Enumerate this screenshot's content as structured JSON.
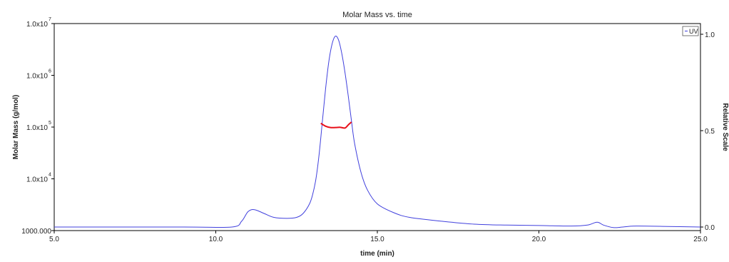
{
  "chart_data": {
    "type": "line",
    "title": "Molar Mass vs. time",
    "xlabel": "time (min)",
    "ylabel": "Molar Mass (g/mol)",
    "y2label": "Relative Scale",
    "xlim": [
      5.0,
      25.0
    ],
    "ylim": [
      1000,
      10000000
    ],
    "yscale": "log",
    "y2lim": [
      0.0,
      1.0
    ],
    "grid": false,
    "x_ticks": [
      "5.0",
      "10.0",
      "15.0",
      "20.0",
      "25.0"
    ],
    "x_tick_values": [
      5,
      10,
      15,
      20,
      25
    ],
    "y_ticks": [
      {
        "value": 1000,
        "label": "1000.000",
        "exp": ""
      },
      {
        "value": 10000,
        "label": "1.0x10",
        "exp": "4"
      },
      {
        "value": 100000,
        "label": "1.0x10",
        "exp": "5"
      },
      {
        "value": 1000000,
        "label": "1.0x10",
        "exp": "6"
      },
      {
        "value": 10000000,
        "label": "1.0x10",
        "exp": "7"
      }
    ],
    "y2_ticks": [
      {
        "value": 0.0,
        "label": "0.0"
      },
      {
        "value": 0.5,
        "label": "0.5"
      },
      {
        "value": 1.0,
        "label": "1.0"
      }
    ],
    "legend": {
      "placement": "top-right",
      "entries": [
        "UV"
      ]
    },
    "series": [
      {
        "name": "UV",
        "axis": "right",
        "color": "#4040dd",
        "x": [
          5.0,
          9.0,
          10.5,
          10.8,
          11.0,
          11.2,
          11.5,
          11.8,
          12.2,
          12.5,
          12.7,
          12.9,
          13.0,
          13.1,
          13.2,
          13.3,
          13.4,
          13.5,
          13.6,
          13.7,
          13.8,
          13.9,
          14.0,
          14.1,
          14.2,
          14.3,
          14.5,
          14.7,
          15.0,
          15.5,
          16.0,
          17.0,
          18.0,
          19.0,
          20.0,
          21.0,
          21.5,
          21.8,
          22.0,
          22.3,
          22.6,
          23.0,
          24.0,
          25.0
        ],
        "y": [
          0.0,
          0.0,
          0.0,
          0.03,
          0.08,
          0.09,
          0.07,
          0.05,
          0.045,
          0.05,
          0.07,
          0.12,
          0.17,
          0.25,
          0.38,
          0.55,
          0.72,
          0.86,
          0.95,
          0.99,
          0.97,
          0.9,
          0.8,
          0.68,
          0.55,
          0.43,
          0.28,
          0.19,
          0.12,
          0.075,
          0.05,
          0.03,
          0.015,
          0.01,
          0.008,
          0.005,
          0.01,
          0.025,
          0.01,
          -0.003,
          0.0,
          0.005,
          0.003,
          0.0
        ]
      },
      {
        "name": "Molar Mass",
        "axis": "left",
        "color": "#e8101a",
        "x": [
          13.25,
          13.4,
          13.55,
          13.7,
          13.85,
          14.0,
          14.1,
          14.2
        ],
        "y": [
          118000,
          104000,
          98000,
          98000,
          99000,
          96000,
          110000,
          125000
        ]
      }
    ]
  }
}
